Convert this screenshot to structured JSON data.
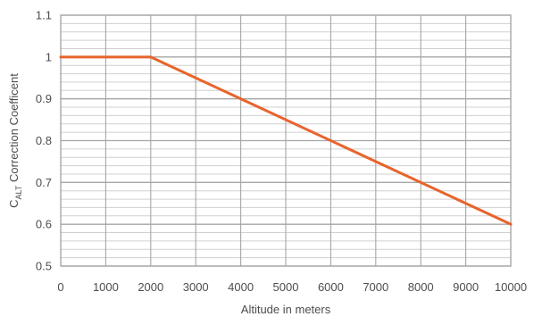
{
  "chart_data": {
    "type": "line",
    "title": "",
    "xlabel": "Altitude in meters",
    "ylabel": {
      "main": "C",
      "subscript": "ALT",
      "rest": " Correction Coefficent"
    },
    "xlim": [
      0,
      10000
    ],
    "ylim": [
      0.5,
      1.1
    ],
    "x_ticks": [
      0,
      1000,
      2000,
      3000,
      4000,
      5000,
      6000,
      7000,
      8000,
      9000,
      10000
    ],
    "y_ticks": [
      0.5,
      0.6,
      0.7,
      0.8,
      0.9,
      1,
      1.1
    ],
    "y_tick_labels": [
      "0.5",
      "0.6",
      "0.7",
      "0.8",
      "0.9",
      "1",
      "1.1"
    ],
    "grid": true,
    "legend": false,
    "series": [
      {
        "x": [
          0,
          2000,
          10000
        ],
        "y": [
          1,
          1,
          0.6
        ],
        "color": "#e8642c"
      }
    ]
  },
  "colors": {
    "line": "#e8642c",
    "major_grid": "#a6a6a6",
    "minor_grid": "#d0d0d0",
    "text": "#4d4d4d"
  }
}
